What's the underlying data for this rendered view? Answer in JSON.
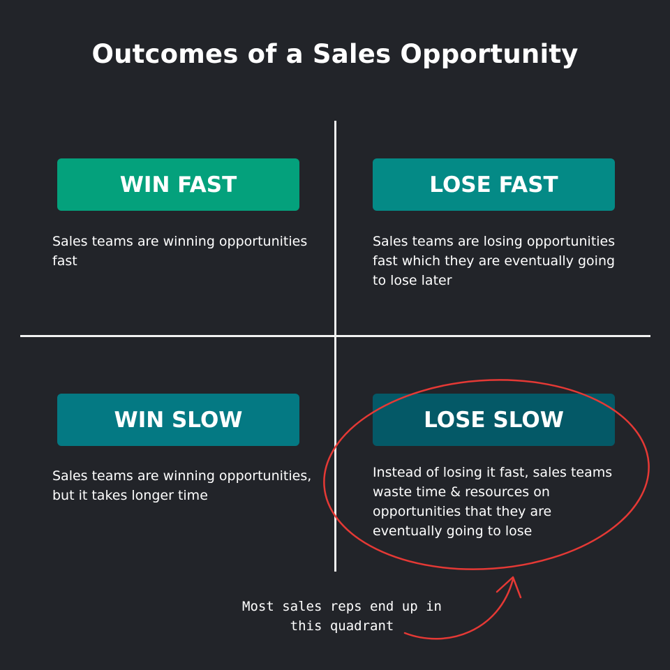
{
  "title": "Outcomes of a Sales Opportunity",
  "quadrants": [
    {
      "label": "WIN FAST",
      "color": "#04a17c",
      "description": "Sales teams are winning opportunities fast"
    },
    {
      "label": "LOSE FAST",
      "color": "#048a86",
      "description": "Sales teams are losing opportunities fast which they are eventually going to lose later"
    },
    {
      "label": "WIN SLOW",
      "color": "#047983",
      "description": "Sales teams are winning opportunities, but it takes longer time"
    },
    {
      "label": "LOSE SLOW",
      "color": "#045967",
      "description": "Instead of losing it fast, sales teams waste time & resources on opportunities that they are eventually going to lose"
    }
  ],
  "annotation": {
    "note": "Most sales reps end up in this quadrant",
    "color": "#e53935"
  }
}
